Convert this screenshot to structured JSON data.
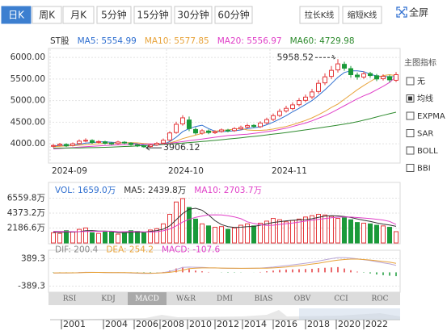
{
  "tabs": {
    "items": [
      "日K",
      "周K",
      "月K",
      "5分钟",
      "15分钟",
      "30分钟",
      "60分钟"
    ],
    "selected": 0
  },
  "buttons": [
    "拉长K线",
    "缩短K线"
  ],
  "fullscreen": "全屏",
  "indicator_panel": {
    "title": "主图指标",
    "options": [
      "无",
      "均线",
      "EXPMA",
      "SAR",
      "BOLL",
      "BBI"
    ],
    "selected": 1
  },
  "indicator_tabs": {
    "items": [
      "RSI",
      "KDJ",
      "MACD",
      "W&R",
      "DMI",
      "BIAS",
      "OBV",
      "CCI",
      "ROC"
    ],
    "selected": 2
  },
  "timeline": [
    "2001",
    "2004",
    "2006",
    "2008",
    "2010",
    "2012",
    "2014",
    "2016",
    "2018",
    "2020",
    "2022"
  ],
  "chart_data": [
    {
      "type": "candlestick",
      "legend": [
        {
          "text": "ST股",
          "color": "#333333"
        },
        {
          "text": "MA5: 5554.99",
          "color": "#2f6fd0"
        },
        {
          "text": "MA10: 5577.85",
          "color": "#e8a33a"
        },
        {
          "text": "MA20: 5556.97",
          "color": "#e040c8"
        },
        {
          "text": "MA60: 4729.98",
          "color": "#2e8b2e"
        }
      ],
      "categories": [
        "2024-09",
        null,
        null,
        null,
        null,
        null,
        null,
        null,
        null,
        null,
        null,
        null,
        null,
        null,
        null,
        null,
        null,
        null,
        "2024-10",
        null,
        null,
        null,
        null,
        null,
        null,
        null,
        null,
        null,
        null,
        null,
        null,
        null,
        null,
        null,
        "2024-11",
        null,
        null,
        null,
        null,
        null,
        null,
        null,
        null,
        null,
        null,
        null,
        null,
        null,
        null,
        null,
        null,
        null,
        null,
        null
      ],
      "open": [
        3940,
        3965,
        3985,
        3960,
        4005,
        4065,
        4075,
        4035,
        4045,
        4015,
        4005,
        4035,
        4015,
        3975,
        3955,
        3935,
        3975,
        4015,
        4085,
        4260,
        4460,
        4550,
        4330,
        4245,
        4295,
        4255,
        4285,
        4315,
        4305,
        4345,
        4385,
        4425,
        4395,
        4485,
        4565,
        4655,
        4760,
        4815,
        4905,
        5005,
        5085,
        5210,
        5410,
        5560,
        5710,
        5840,
        5740,
        5590,
        5545,
        5625,
        5575,
        5505,
        5555,
        5470
      ],
      "high": [
        3995,
        4020,
        4010,
        4030,
        4100,
        4125,
        4105,
        4080,
        4070,
        4040,
        4070,
        4060,
        4035,
        3995,
        3975,
        3995,
        4040,
        4120,
        4290,
        4510,
        4660,
        4630,
        4380,
        4340,
        4330,
        4315,
        4355,
        4345,
        4385,
        4420,
        4465,
        4455,
        4520,
        4605,
        4700,
        4810,
        4880,
        4960,
        5060,
        5140,
        5270,
        5480,
        5630,
        5800,
        5958.52,
        5900,
        5800,
        5650,
        5675,
        5665,
        5615,
        5610,
        5595,
        5660
      ],
      "low": [
        3910,
        3940,
        3925,
        3935,
        3980,
        4035,
        4000,
        4010,
        3985,
        3970,
        3980,
        3995,
        3955,
        3925,
        3906.12,
        3915,
        3950,
        3990,
        4060,
        4230,
        4420,
        4290,
        4210,
        4210,
        4220,
        4225,
        4255,
        4265,
        4275,
        4315,
        4355,
        4365,
        4365,
        4450,
        4525,
        4615,
        4720,
        4775,
        4865,
        4965,
        5035,
        5160,
        5360,
        5500,
        5650,
        5690,
        5530,
        5485,
        5505,
        5530,
        5450,
        5465,
        5420,
        5430
      ],
      "close": [
        3960,
        3990,
        3950,
        4000,
        4060,
        4080,
        4030,
        4050,
        4010,
        4000,
        4040,
        4020,
        3980,
        3950,
        3930,
        3970,
        4010,
        4080,
        4250,
        4450,
        4600,
        4350,
        4250,
        4300,
        4260,
        4280,
        4320,
        4300,
        4350,
        4380,
        4420,
        4400,
        4480,
        4560,
        4650,
        4750,
        4820,
        4900,
        5000,
        5080,
        5200,
        5400,
        5550,
        5700,
        5850,
        5750,
        5600,
        5550,
        5620,
        5580,
        5500,
        5560,
        5480,
        5600
      ],
      "up_color": "#e4393c",
      "down_color": "#1a9a3a",
      "series": [
        {
          "color": "#2f6fd0",
          "values": [
            3950,
            3960,
            3965,
            3970,
            3990,
            4015,
            4025,
            4045,
            4045,
            4035,
            4025,
            4025,
            4020,
            3995,
            3965,
            3960,
            3965,
            3990,
            4050,
            4150,
            4280,
            4350,
            4400,
            4430,
            4350,
            4290,
            4280,
            4290,
            4300,
            4320,
            4350,
            4370,
            4390,
            4440,
            4500,
            4570,
            4650,
            4740,
            4820,
            4910,
            5000,
            5120,
            5250,
            5390,
            5540,
            5650,
            5690,
            5690,
            5670,
            5610,
            5570,
            5560,
            5550,
            5554.99
          ]
        },
        {
          "color": "#e8a33a",
          "values": [
            3930,
            3940,
            3950,
            3955,
            3965,
            3980,
            3990,
            4000,
            4010,
            4015,
            4020,
            4020,
            4025,
            4020,
            4005,
            3995,
            3995,
            4005,
            4020,
            4060,
            4120,
            4160,
            4200,
            4240,
            4270,
            4290,
            4310,
            4320,
            4340,
            4350,
            4320,
            4310,
            4310,
            4320,
            4340,
            4370,
            4400,
            4440,
            4490,
            4540,
            4600,
            4670,
            4750,
            4840,
            4920,
            5030,
            5140,
            5250,
            5350,
            5440,
            5530,
            5580,
            5600,
            5577.85
          ]
        },
        {
          "color": "#e040c8",
          "values": [
            3880,
            3890,
            3900,
            3910,
            3920,
            3930,
            3940,
            3950,
            3960,
            3965,
            3975,
            3980,
            3985,
            3990,
            3990,
            3995,
            3995,
            4000,
            4010,
            4030,
            4050,
            4070,
            4090,
            4110,
            4130,
            4150,
            4170,
            4190,
            4200,
            4210,
            4220,
            4240,
            4260,
            4280,
            4300,
            4330,
            4360,
            4400,
            4440,
            4480,
            4530,
            4590,
            4650,
            4720,
            4800,
            4880,
            4960,
            5040,
            5110,
            5170,
            5250,
            5330,
            5420,
            5556.97
          ]
        },
        {
          "color": "#2e8b2e",
          "values": [
            3900,
            3900,
            3901,
            3902,
            3904,
            3907,
            3910,
            3914,
            3918,
            3923,
            3929,
            3935,
            3942,
            3949,
            3957,
            3965,
            3974,
            3984,
            3994,
            4004,
            4015,
            4027,
            4039,
            4052,
            4065,
            4078,
            4092,
            4107,
            4122,
            4138,
            4154,
            4170,
            4187,
            4205,
            4223,
            4241,
            4260,
            4280,
            4300,
            4321,
            4342,
            4364,
            4386,
            4409,
            4432,
            4456,
            4480,
            4510,
            4545,
            4580,
            4620,
            4660,
            4695,
            4729.98
          ]
        }
      ],
      "ylim": [
        3590,
        6170
      ],
      "yticks": [
        {
          "value": 6000,
          "label": "6000.00"
        },
        {
          "value": 5500,
          "label": "5500.00"
        },
        {
          "value": 5000,
          "label": "5000.00"
        },
        {
          "value": 4500,
          "label": "4500.00"
        },
        {
          "value": 4000,
          "label": "4000.00"
        }
      ],
      "grid": true
    },
    {
      "type": "bar",
      "legend": [
        {
          "text": "VOL: 1659.0万",
          "color": "#2f6fd0"
        },
        {
          "text": "MA5: 2439.8万",
          "color": "#333333"
        },
        {
          "text": "MA10: 2703.7万",
          "color": "#e040c8"
        }
      ],
      "values": [
        1500,
        1400,
        1800,
        1600,
        2000,
        2200,
        1500,
        1400,
        1600,
        1700,
        1300,
        1500,
        1800,
        1700,
        1600,
        1900,
        2100,
        2800,
        4200,
        6000,
        6500,
        5200,
        3500,
        2800,
        2500,
        2300,
        2400,
        2000,
        2200,
        2600,
        2800,
        2500,
        2900,
        3200,
        3600,
        3400,
        3100,
        3300,
        3500,
        3800,
        4000,
        4200,
        4100,
        3900,
        3600,
        3700,
        3400,
        3000,
        2900,
        2800,
        2600,
        2500,
        2300,
        1659
      ],
      "series": [
        {
          "color": "#333333",
          "values": [
            1600,
            1550,
            1600,
            1600,
            1660,
            1800,
            1820,
            1740,
            1740,
            1680,
            1500,
            1500,
            1560,
            1600,
            1580,
            1700,
            1820,
            2020,
            2520,
            3400,
            4320,
            4940,
            5080,
            4800,
            4100,
            3260,
            2700,
            2400,
            2280,
            2300,
            2400,
            2420,
            2600,
            2800,
            3000,
            3120,
            3240,
            3320,
            3380,
            3420,
            3540,
            3760,
            3920,
            4000,
            3960,
            3860,
            3740,
            3520,
            3320,
            3160,
            2940,
            2760,
            2620,
            2439.8
          ]
        },
        {
          "color": "#e040c8",
          "values": [
            1700,
            1680,
            1670,
            1660,
            1650,
            1680,
            1700,
            1700,
            1720,
            1720,
            1650,
            1650,
            1680,
            1670,
            1630,
            1600,
            1660,
            1780,
            2060,
            2500,
            3060,
            3460,
            3760,
            3950,
            4110,
            4130,
            4100,
            4000,
            3820,
            3560,
            3100,
            2860,
            2680,
            2560,
            2600,
            2720,
            2820,
            2920,
            3060,
            3200,
            3330,
            3460,
            3580,
            3700,
            3780,
            3800,
            3790,
            3720,
            3650,
            3580,
            3470,
            3360,
            3150,
            2703.7
          ]
        }
      ],
      "ylim": [
        0,
        8746.4
      ],
      "yticks": [
        {
          "value": 6559.8,
          "label": "6559.8万"
        },
        {
          "value": 4373.2,
          "label": "4373.2万"
        },
        {
          "value": 2186.6,
          "label": "2186.6万"
        }
      ],
      "grid": true
    },
    {
      "type": "macd",
      "legend": [
        {
          "text": "DIF: 200.4",
          "color": "#888888"
        },
        {
          "text": "DEA: 254.2",
          "color": "#e8a33a"
        },
        {
          "text": "MACD: -107.6",
          "color": "#e040c8"
        }
      ],
      "values": [
        -10,
        -8,
        -12,
        -5,
        5,
        10,
        4,
        2,
        -3,
        -6,
        -4,
        -5,
        -12,
        -18,
        -22,
        -15,
        -5,
        10,
        50,
        110,
        150,
        90,
        50,
        30,
        10,
        0,
        -5,
        -10,
        -8,
        -5,
        0,
        -2,
        10,
        30,
        50,
        70,
        80,
        85,
        90,
        95,
        100,
        120,
        130,
        140,
        150,
        110,
        60,
        20,
        -10,
        -30,
        -60,
        -80,
        -95,
        -107.6
      ],
      "series": [
        {
          "color": "#b9a6d6",
          "values": [
            -20,
            -18,
            -20,
            -15,
            -8,
            0,
            0,
            -2,
            -6,
            -10,
            -10,
            -12,
            -18,
            -25,
            -32,
            -30,
            -22,
            -8,
            25,
            80,
            140,
            150,
            145,
            140,
            130,
            125,
            120,
            115,
            112,
            112,
            115,
            115,
            122,
            135,
            150,
            172,
            192,
            212,
            235,
            258,
            285,
            320,
            355,
            390,
            420,
            420,
            405,
            385,
            360,
            335,
            300,
            270,
            240,
            200.4
          ]
        },
        {
          "color": "#e8a33a",
          "values": [
            -15,
            -14,
            -14,
            -13,
            -11,
            -5,
            -2,
            -3,
            -4,
            -7,
            -8,
            -9,
            -12,
            -16,
            -21,
            -22,
            -20,
            -13,
            0,
            25,
            65,
            105,
            120,
            125,
            125,
            125,
            122,
            120,
            116,
            114,
            115,
            116,
            117,
            120,
            125,
            137,
            152,
            170,
            190,
            210,
            235,
            260,
            290,
            320,
            345,
            365,
            375,
            375,
            365,
            350,
            330,
            310,
            288,
            254.2
          ]
        }
      ],
      "ylim": [
        -541,
        605
      ],
      "yticks": [
        389.3,
        -389.3
      ],
      "grid": true
    }
  ]
}
